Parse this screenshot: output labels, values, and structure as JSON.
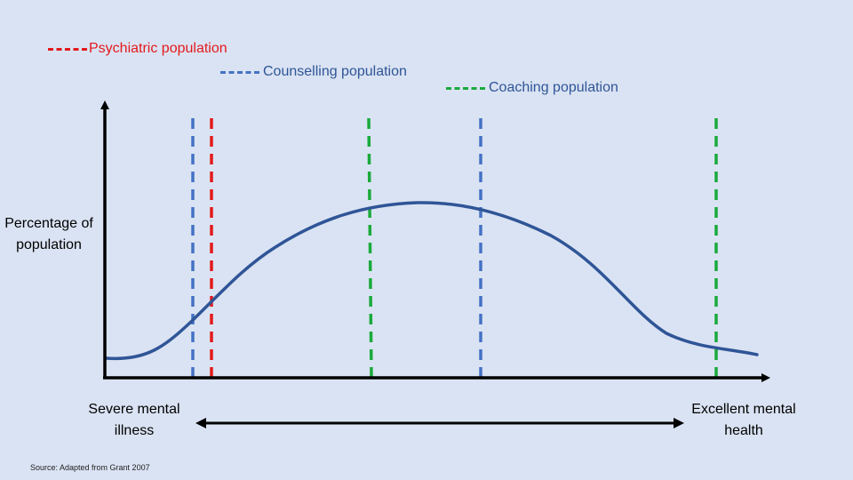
{
  "legend": [
    {
      "label": "Psychiatric population",
      "color": "#e31a1c"
    },
    {
      "label": "Counselling population",
      "color": "#4472c4"
    },
    {
      "label": "Coaching population",
      "color": "#1aaa3c"
    }
  ],
  "y_axis_label": "Percentage of population",
  "x_axis": {
    "left_label": "Severe mental illness",
    "right_label": "Excellent mental health"
  },
  "source": "Source: Adapted from Grant 2007",
  "colors": {
    "background": "#dae3f3",
    "curve": "#2f5597",
    "axis": "#000000"
  }
}
